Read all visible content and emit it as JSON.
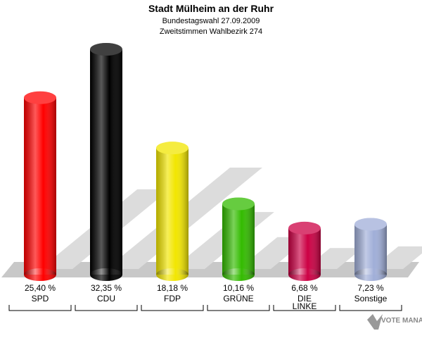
{
  "chart_data": {
    "type": "bar",
    "title": "Stadt Mülheim an der Ruhr",
    "subtitle": [
      "Bundestagswahl 27.09.2009",
      "Zweitstimmen Wahlbezirk 274"
    ],
    "categories": [
      "SPD",
      "CDU",
      "FDP",
      "GRÜNE",
      "DIE LINKE",
      "Sonstige"
    ],
    "values": [
      25.4,
      32.35,
      18.18,
      10.16,
      6.68,
      7.23
    ],
    "value_labels": [
      "25,40 %",
      "32,35 %",
      "18,18 %",
      "10,16 %",
      "6,68 %",
      "7,23 %"
    ],
    "colors": [
      "#ff0000",
      "#000000",
      "#f2e600",
      "#33bb00",
      "#cc0044",
      "#a0aed8"
    ],
    "watermark": "VOTE MANAGER"
  }
}
